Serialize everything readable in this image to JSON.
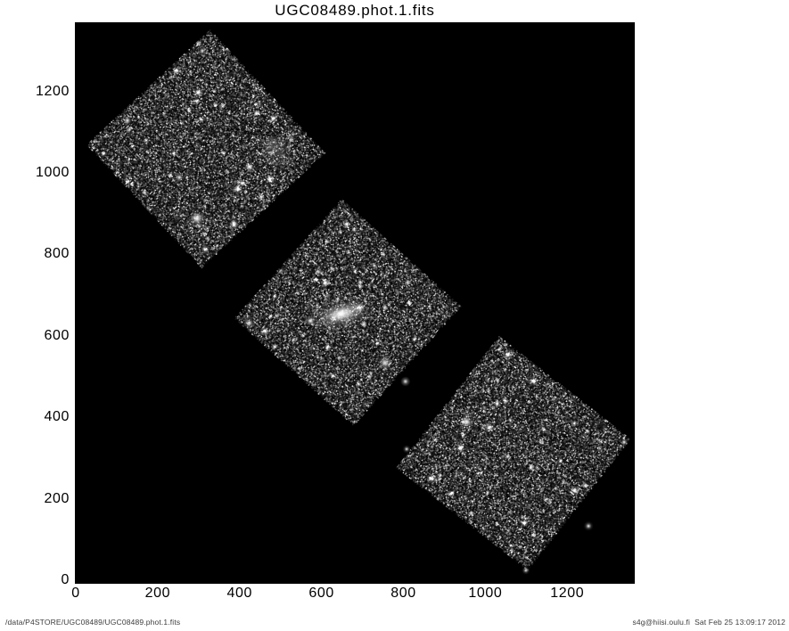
{
  "title": "UGC08489.phot.1.fits",
  "footer": {
    "file_path": "/data/P4STORE/UGC08489/UGC08489.phot.1.fits",
    "credit": "s4g@hiisi.oulu.fi  Sat Feb 25 13:09:17 2012"
  },
  "chart_data": {
    "type": "heatmap",
    "title": "UGC08489.phot.1.fits",
    "xlabel": "",
    "ylabel": "",
    "xlim": [
      0,
      1365
    ],
    "ylim": [
      0,
      1370
    ],
    "xticks": [
      0,
      200,
      400,
      600,
      800,
      1000,
      1200
    ],
    "yticks": [
      0,
      200,
      400,
      600,
      800,
      1000,
      1200
    ],
    "grid": false,
    "background_color": "#000000",
    "legend": null,
    "frames": [
      {
        "name": "frame-northwest",
        "center_x": 317,
        "center_y": 1059,
        "size": 413,
        "rotation_deg": 47
      },
      {
        "name": "frame-center",
        "center_x": 665,
        "center_y": 657,
        "size": 395,
        "rotation_deg": 42
      },
      {
        "name": "frame-southeast",
        "center_x": 1069,
        "center_y": 311,
        "size": 410,
        "rotation_deg": 38
      }
    ],
    "features": [
      {
        "name": "galaxy-ugc08489",
        "kind": "galaxy",
        "x": 649,
        "y": 654,
        "major_axis": 190,
        "minor_axis": 85,
        "angle_deg": -14
      },
      {
        "name": "galaxy-knot",
        "kind": "fuzzy",
        "x": 573,
        "y": 637,
        "r": 12
      },
      {
        "name": "star-left-of-galaxy",
        "kind": "star",
        "x": 424,
        "y": 632,
        "r": 14
      },
      {
        "name": "fuzzy-star-south-of-galaxy",
        "kind": "fuzzy",
        "x": 755,
        "y": 534,
        "r": 18
      },
      {
        "name": "fuzzy-star-southeast-of-galaxy",
        "kind": "fuzzy",
        "x": 805,
        "y": 488,
        "r": 12
      },
      {
        "name": "faint-nebula-northwest-frame",
        "kind": "nebula",
        "x": 492,
        "y": 1052,
        "r": 48
      },
      {
        "name": "bright-star-northwest-frame",
        "kind": "star",
        "x": 296,
        "y": 888,
        "r": 22
      },
      {
        "name": "star-northwest-frame-b",
        "kind": "star",
        "x": 253,
        "y": 989,
        "r": 13
      },
      {
        "name": "star-northwest-frame-c",
        "kind": "star",
        "x": 126,
        "y": 1129,
        "r": 13
      },
      {
        "name": "star-northwest-frame-top",
        "kind": "star",
        "x": 309,
        "y": 1300,
        "r": 11
      },
      {
        "name": "star-center-frame-top",
        "kind": "star",
        "x": 592,
        "y": 757,
        "r": 10
      },
      {
        "name": "bright-star-southeast-frame",
        "kind": "star",
        "x": 954,
        "y": 389,
        "r": 20
      },
      {
        "name": "star-southeast-frame-right",
        "kind": "star",
        "x": 1339,
        "y": 339,
        "r": 11
      },
      {
        "name": "star-southeast-frame-b",
        "kind": "star",
        "x": 1252,
        "y": 133,
        "r": 12
      },
      {
        "name": "star-southeast-frame-c",
        "kind": "star",
        "x": 808,
        "y": 322,
        "r": 10
      },
      {
        "name": "star-southeast-frame-bottom",
        "kind": "star",
        "x": 1099,
        "y": 24,
        "r": 10
      }
    ]
  }
}
